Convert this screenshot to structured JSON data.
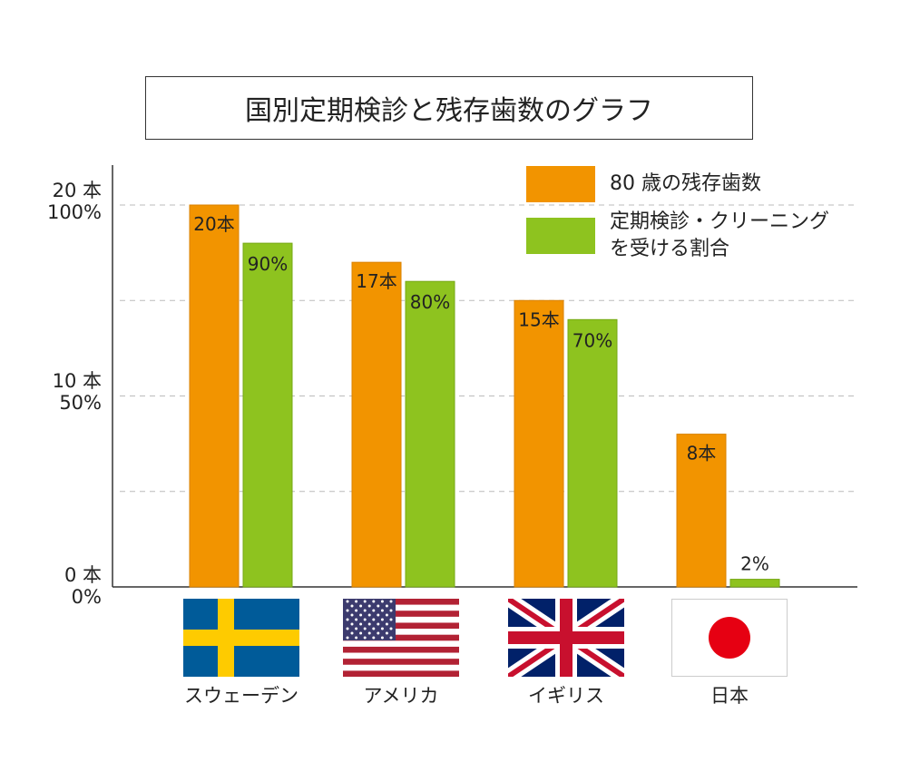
{
  "title": "国別定期検診と残存歯数のグラフ",
  "colors": {
    "teeth": "#f29400",
    "checkup": "#8ec31f",
    "grid": "#bbbbbb",
    "axis": "#333333"
  },
  "legend": {
    "teeth": "80 歳の残存歯数",
    "checkup_line1": "定期検診・クリーニング",
    "checkup_line2": "を受ける割合"
  },
  "y_ticks": [
    {
      "line1": "20 本",
      "line2": "100%"
    },
    {
      "line1": "10 本",
      "line2": "50%"
    },
    {
      "line1": "0 本",
      "line2": "0%"
    }
  ],
  "countries": [
    "スウェーデン",
    "アメリカ",
    "イギリス",
    "日本"
  ],
  "flags": [
    "sweden-flag",
    "usa-flag",
    "uk-flag",
    "japan-flag"
  ],
  "chart_data": {
    "type": "bar",
    "title": "国別定期検診と残存歯数のグラフ",
    "categories": [
      "スウェーデン",
      "アメリカ",
      "イギリス",
      "日本"
    ],
    "series": [
      {
        "name": "80 歳の残存歯数",
        "values": [
          20,
          17,
          15,
          8
        ],
        "unit": "本",
        "labels": [
          "20本",
          "17本",
          "15本",
          "8本"
        ]
      },
      {
        "name": "定期検診・クリーニングを受ける割合",
        "values": [
          90,
          80,
          70,
          2
        ],
        "unit": "%",
        "labels": [
          "90%",
          "80%",
          "70%",
          "2%"
        ]
      }
    ],
    "ylim_teeth": [
      0,
      20
    ],
    "ylim_percent": [
      0,
      100
    ],
    "grid": true,
    "legend_position": "top-right"
  }
}
